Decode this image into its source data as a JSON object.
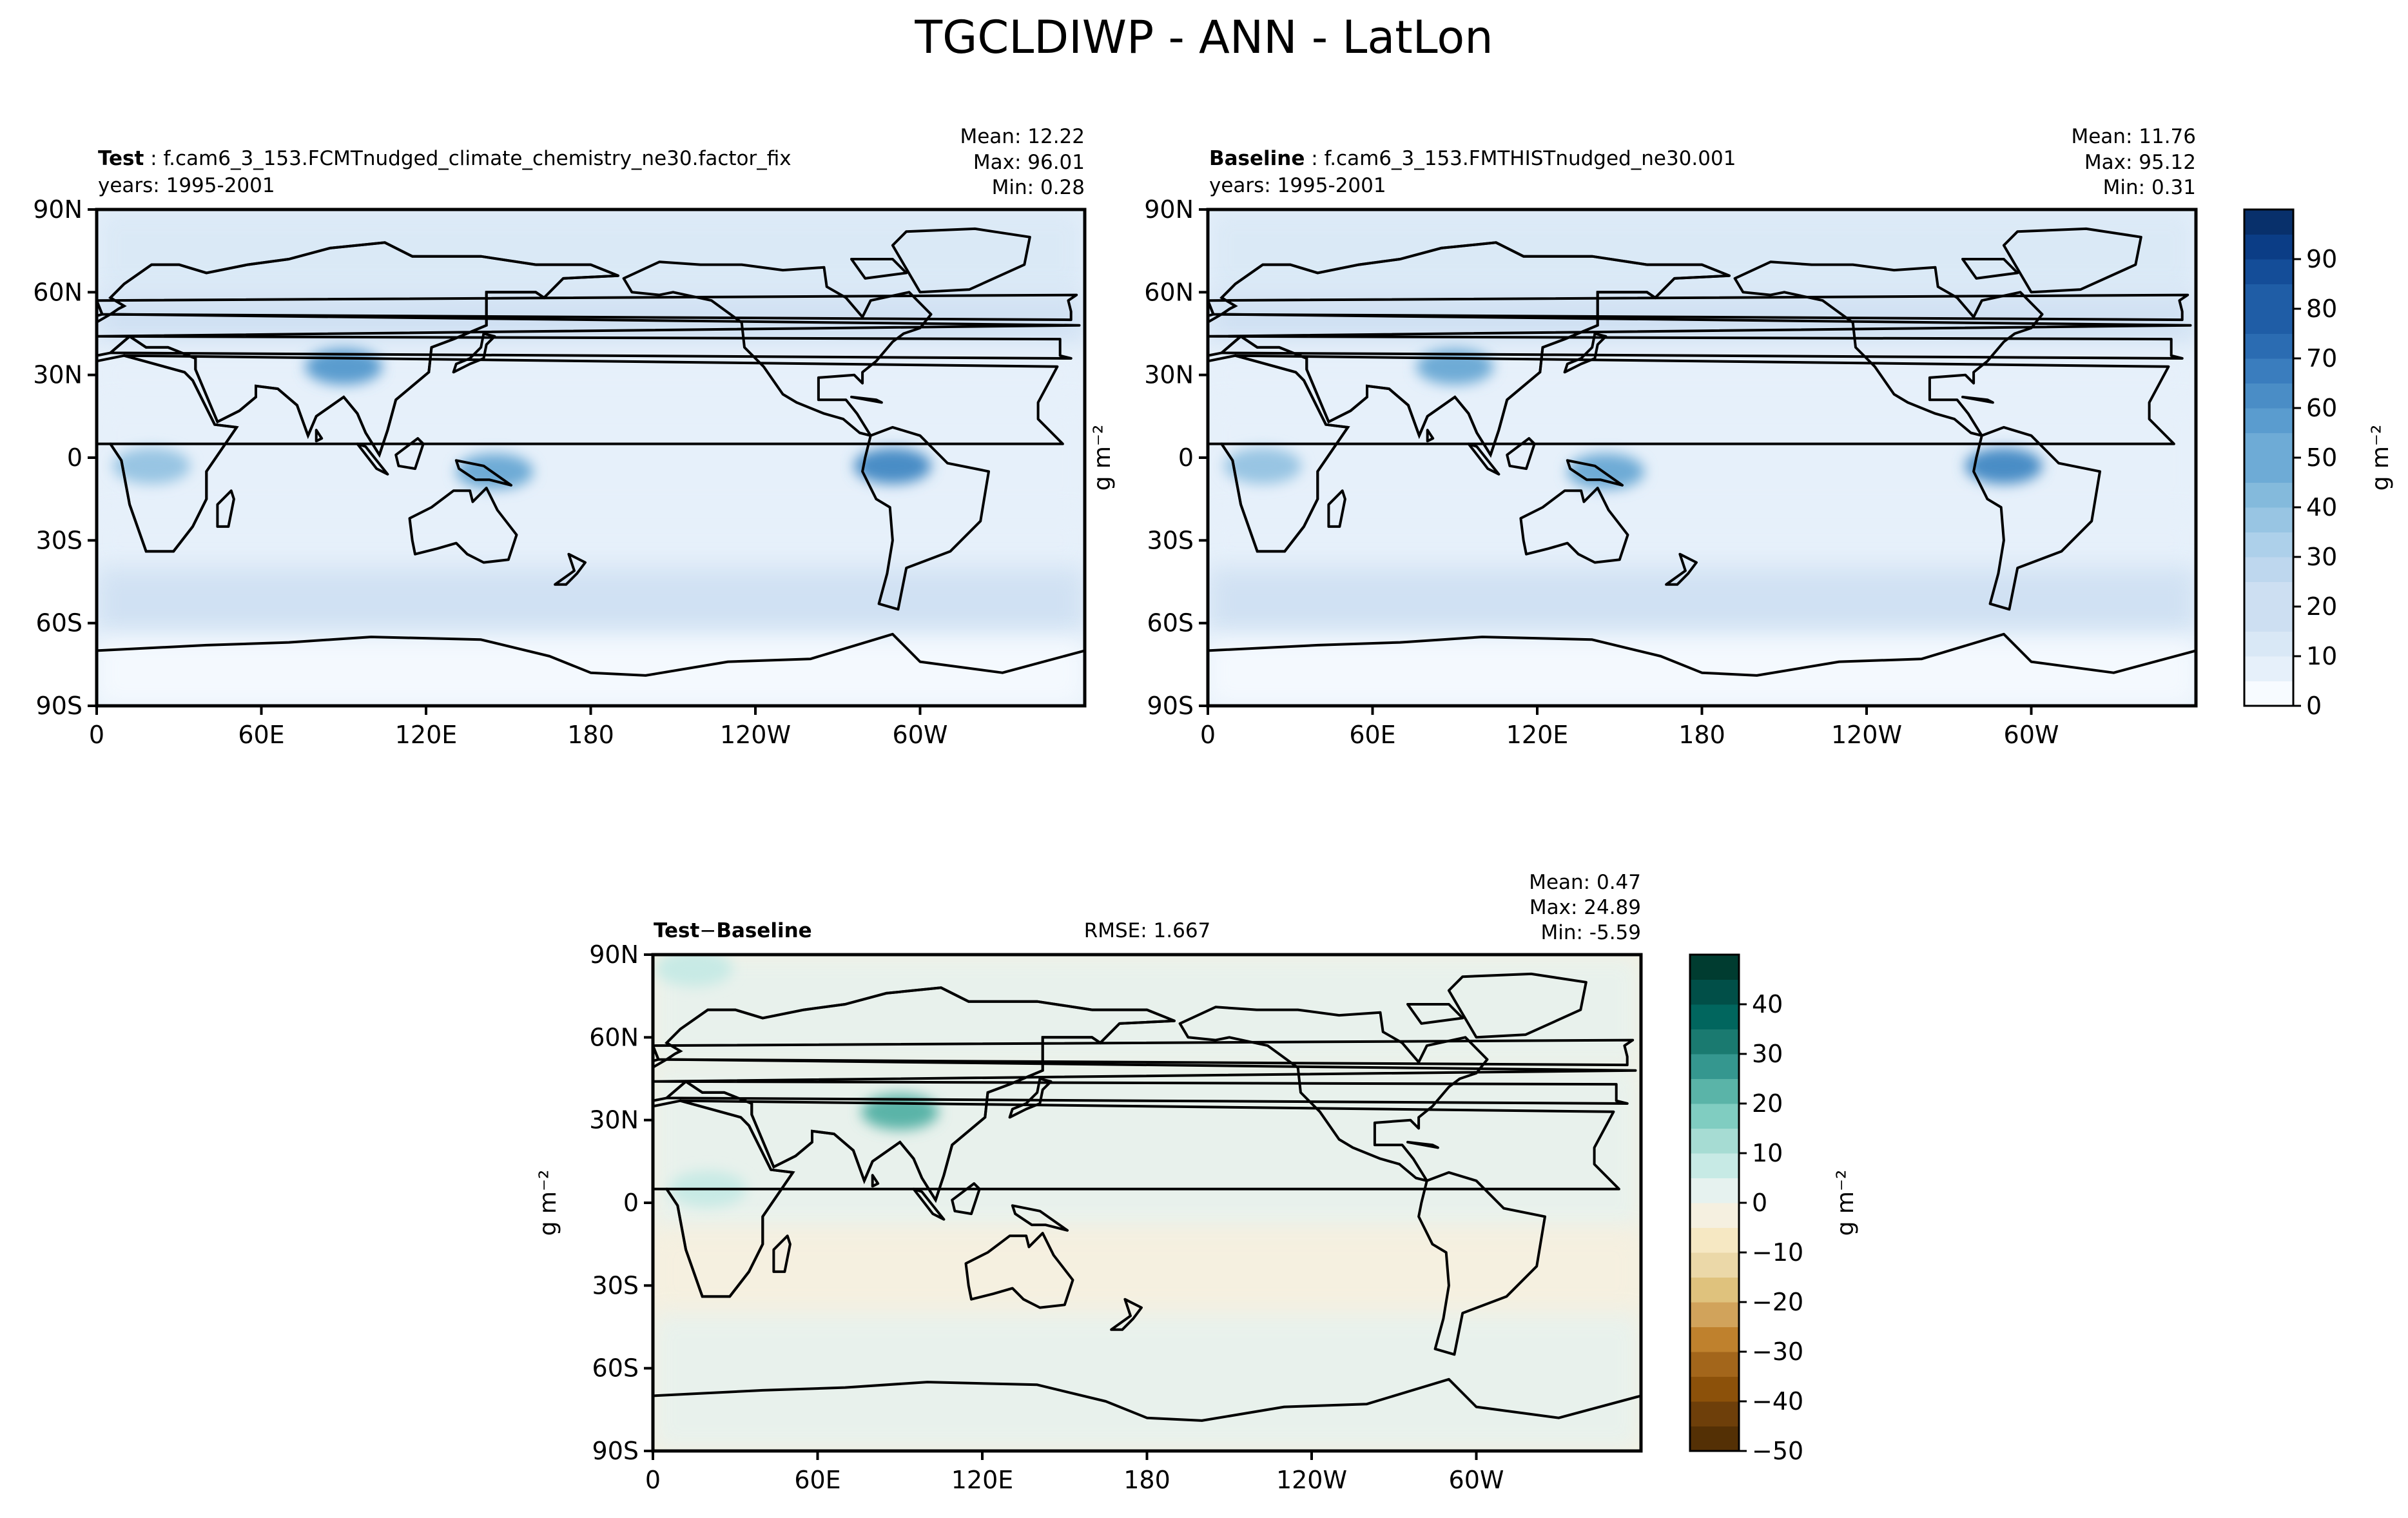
{
  "title": "TGCLDIWP - ANN - LatLon",
  "colors": {
    "land_coast": "#000000",
    "frame": "#000000",
    "abs_scale": [
      "#f7fbff",
      "#e6f0fa",
      "#d9e8f6",
      "#cddff2",
      "#bed7ee",
      "#add0ea",
      "#98c5e3",
      "#84badc",
      "#6eabd6",
      "#5a9ccf",
      "#4a8dc6",
      "#3a7dbe",
      "#2b6cb2",
      "#1f5da6",
      "#144d98",
      "#0b3d86",
      "#08306b"
    ],
    "diff_scale": [
      "#543005",
      "#6e3f0a",
      "#8c510a",
      "#a3661b",
      "#bf812d",
      "#d1a35b",
      "#dfc27d",
      "#ebd8a8",
      "#f6e8c3",
      "#f5f0e0",
      "#e6f2ef",
      "#c7eae5",
      "#a6dcd3",
      "#80cdc1",
      "#5ab4a8",
      "#35978f",
      "#1a7a70",
      "#01665e",
      "#014f48",
      "#003c30"
    ]
  },
  "panels": {
    "test": {
      "label_bold": "Test",
      "label_name": "f.cam6_3_153.FCMTnudged_climate_chemistry_ne30.factor_fix",
      "years": "years: 1995-2001",
      "stats": {
        "mean": "Mean: 12.22",
        "max": "Max: 96.01",
        "min": "Min:  0.28"
      }
    },
    "baseline": {
      "label_bold": "Baseline",
      "label_name": "f.cam6_3_153.FMTHISTnudged_ne30.001",
      "years": "years: 1995-2001",
      "stats": {
        "mean": "Mean: 11.76",
        "max": "Max: 95.12",
        "min": "Min:  0.31"
      }
    },
    "diff": {
      "label_bold": "Test",
      "label_minus": "−",
      "label_bold2": "Baseline",
      "rmse": "RMSE: 1.667",
      "stats": {
        "mean": "Mean:  0.47",
        "max": "Max: 24.89",
        "min": "Min: -5.59"
      }
    }
  },
  "axis_labels": {
    "lat_ticks": [
      "90N",
      "60N",
      "30N",
      "0",
      "30S",
      "60S",
      "90S"
    ],
    "lon_ticks": [
      "0",
      "60E",
      "120E",
      "180",
      "120W",
      "60W"
    ],
    "units": "g m⁻²"
  },
  "colorbars": {
    "abs": {
      "ticks": [
        "0",
        "10",
        "20",
        "30",
        "40",
        "50",
        "60",
        "70",
        "80",
        "90"
      ],
      "levels": [
        0,
        5,
        10,
        15,
        20,
        25,
        30,
        35,
        40,
        45,
        50,
        55,
        60,
        65,
        70,
        75,
        80,
        85,
        90,
        95
      ]
    },
    "diff": {
      "ticks": [
        "−50",
        "−40",
        "−30",
        "−20",
        "−10",
        "0",
        "10",
        "20",
        "30",
        "40"
      ],
      "levels": [
        -50,
        -45,
        -40,
        -35,
        -30,
        -25,
        -20,
        -15,
        -10,
        -5,
        0,
        5,
        10,
        15,
        20,
        25,
        30,
        35,
        40,
        45
      ]
    }
  },
  "chart_data": [
    {
      "type": "heatmap",
      "name": "Test",
      "field": "TGCLDIWP annual mean",
      "x_range": [
        0,
        360
      ],
      "y_range": [
        -90,
        90
      ],
      "x_ticks": [
        "0",
        "60E",
        "120E",
        "180",
        "120W",
        "60W"
      ],
      "y_ticks": [
        "90N",
        "60N",
        "30N",
        "0",
        "30S",
        "60S",
        "90S"
      ],
      "colorbar": {
        "min": 0,
        "max": 95,
        "step": 5,
        "label": "g m⁻²"
      },
      "stats": {
        "mean": 12.22,
        "max": 96.01,
        "min": 0.28
      },
      "features": [
        {
          "lon": 90,
          "lat": 33,
          "value": 55
        },
        {
          "lon": 290,
          "lat": -3,
          "value": 60
        },
        {
          "lon": 145,
          "lat": -5,
          "value": 45
        },
        {
          "lon": 20,
          "lat": -3,
          "value": 35
        }
      ]
    },
    {
      "type": "heatmap",
      "name": "Baseline",
      "field": "TGCLDIWP annual mean",
      "x_range": [
        0,
        360
      ],
      "y_range": [
        -90,
        90
      ],
      "colorbar": {
        "min": 0,
        "max": 95,
        "step": 5,
        "label": "g m⁻²"
      },
      "stats": {
        "mean": 11.76,
        "max": 95.12,
        "min": 0.31
      },
      "features": [
        {
          "lon": 90,
          "lat": 33,
          "value": 45
        },
        {
          "lon": 290,
          "lat": -3,
          "value": 60
        },
        {
          "lon": 145,
          "lat": -5,
          "value": 45
        },
        {
          "lon": 20,
          "lat": -3,
          "value": 35
        }
      ]
    },
    {
      "type": "heatmap",
      "name": "Test − Baseline",
      "x_range": [
        0,
        360
      ],
      "y_range": [
        -90,
        90
      ],
      "colorbar": {
        "min": -50,
        "max": 45,
        "step": 5,
        "label": "g m⁻²"
      },
      "rmse": 1.667,
      "stats": {
        "mean": 0.47,
        "max": 24.89,
        "min": -5.59
      },
      "features": [
        {
          "lon": 90,
          "lat": 33,
          "value": 22
        },
        {
          "lon": 15,
          "lat": 85,
          "value": 8
        },
        {
          "lon": 20,
          "lat": 5,
          "value": 6
        }
      ]
    }
  ]
}
